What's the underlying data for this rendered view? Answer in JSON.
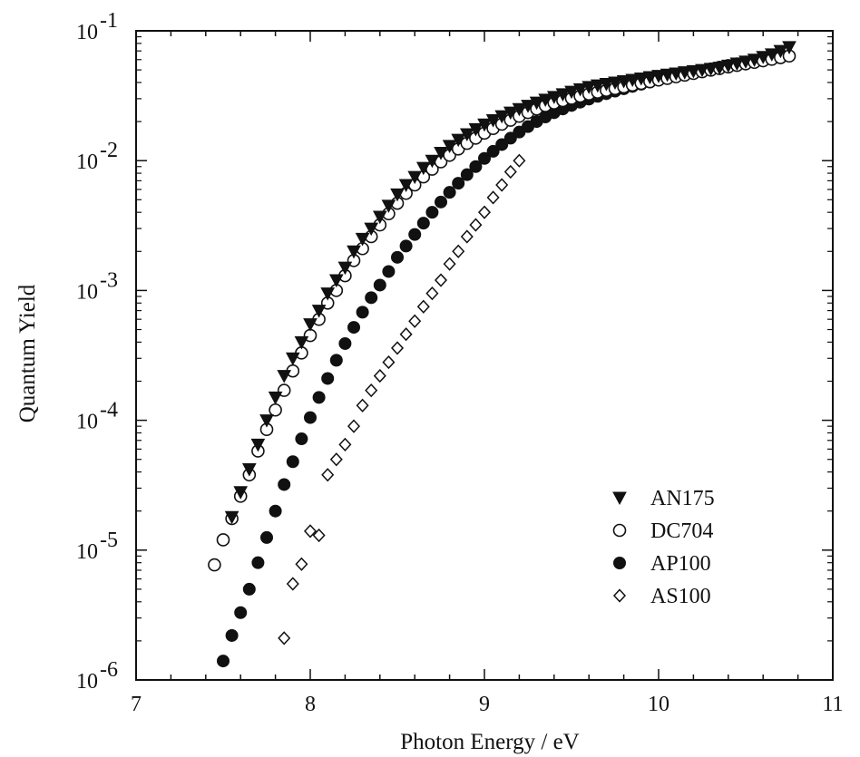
{
  "chart_data": {
    "type": "scatter",
    "xlabel": "Photon Energy / eV",
    "ylabel": "Quantum Yield",
    "xlim": [
      7,
      11
    ],
    "ylim": [
      1e-06,
      0.1
    ],
    "yscale": "log",
    "x_ticks": [
      "7",
      "8",
      "9",
      "10",
      "11"
    ],
    "y_ticks": [
      {
        "base": "10",
        "exp": "-6"
      },
      {
        "base": "10",
        "exp": "-5"
      },
      {
        "base": "10",
        "exp": "-4"
      },
      {
        "base": "10",
        "exp": "-3"
      },
      {
        "base": "10",
        "exp": "-2"
      },
      {
        "base": "10",
        "exp": "-1"
      }
    ],
    "grid": false,
    "legend_position": "bottom-right",
    "series": [
      {
        "name": "AN175",
        "marker": "filled-triangle-down",
        "x": [
          7.55,
          7.6,
          7.65,
          7.7,
          7.75,
          7.8,
          7.85,
          7.9,
          7.95,
          8.0,
          8.05,
          8.1,
          8.15,
          8.2,
          8.25,
          8.3,
          8.35,
          8.4,
          8.45,
          8.5,
          8.55,
          8.6,
          8.65,
          8.7,
          8.75,
          8.8,
          8.85,
          8.9,
          8.95,
          9.0,
          9.05,
          9.1,
          9.15,
          9.2,
          9.25,
          9.3,
          9.35,
          9.4,
          9.45,
          9.5,
          9.55,
          9.6,
          9.65,
          9.7,
          9.75,
          9.8,
          9.85,
          9.9,
          9.95,
          10.0,
          10.05,
          10.1,
          10.15,
          10.2,
          10.25,
          10.3,
          10.35,
          10.4,
          10.45,
          10.5,
          10.55,
          10.6,
          10.65,
          10.7,
          10.75
        ],
        "y": [
          1.8e-05,
          2.8e-05,
          4.2e-05,
          6.5e-05,
          0.0001,
          0.00015,
          0.00022,
          0.0003,
          0.0004,
          0.00055,
          0.0007,
          0.00095,
          0.0012,
          0.0015,
          0.002,
          0.0025,
          0.003,
          0.0037,
          0.0045,
          0.0055,
          0.0065,
          0.0075,
          0.0088,
          0.01,
          0.0115,
          0.013,
          0.0145,
          0.016,
          0.0175,
          0.019,
          0.0205,
          0.022,
          0.0235,
          0.025,
          0.0265,
          0.028,
          0.0295,
          0.031,
          0.0325,
          0.034,
          0.0355,
          0.037,
          0.038,
          0.039,
          0.04,
          0.041,
          0.042,
          0.043,
          0.044,
          0.045,
          0.046,
          0.047,
          0.048,
          0.049,
          0.05,
          0.051,
          0.052,
          0.054,
          0.056,
          0.058,
          0.06,
          0.063,
          0.066,
          0.07,
          0.075
        ]
      },
      {
        "name": "DC704",
        "marker": "open-circle",
        "x": [
          7.45,
          7.5,
          7.55,
          7.6,
          7.65,
          7.7,
          7.75,
          7.8,
          7.85,
          7.9,
          7.95,
          8.0,
          8.05,
          8.1,
          8.15,
          8.2,
          8.25,
          8.3,
          8.35,
          8.4,
          8.45,
          8.5,
          8.55,
          8.6,
          8.65,
          8.7,
          8.75,
          8.8,
          8.85,
          8.9,
          8.95,
          9.0,
          9.05,
          9.1,
          9.15,
          9.2,
          9.25,
          9.3,
          9.35,
          9.4,
          9.45,
          9.5,
          9.55,
          9.6,
          9.65,
          9.7,
          9.75,
          9.8,
          9.85,
          9.9,
          9.95,
          10.0,
          10.05,
          10.1,
          10.15,
          10.2,
          10.25,
          10.3,
          10.35,
          10.4,
          10.45,
          10.5,
          10.55,
          10.6,
          10.65,
          10.7,
          10.75
        ],
        "y": [
          7.7e-06,
          1.2e-05,
          1.75e-05,
          2.6e-05,
          3.8e-05,
          5.8e-05,
          8.5e-05,
          0.00012,
          0.00017,
          0.00024,
          0.00033,
          0.00045,
          0.0006,
          0.0008,
          0.001,
          0.0013,
          0.0017,
          0.0021,
          0.0026,
          0.0032,
          0.0039,
          0.0047,
          0.0056,
          0.0065,
          0.0075,
          0.0086,
          0.0098,
          0.011,
          0.0123,
          0.0136,
          0.0149,
          0.0163,
          0.0177,
          0.0191,
          0.0205,
          0.022,
          0.0235,
          0.025,
          0.0265,
          0.0278,
          0.029,
          0.0302,
          0.0314,
          0.0326,
          0.0337,
          0.0348,
          0.0359,
          0.037,
          0.0382,
          0.0394,
          0.0406,
          0.0418,
          0.043,
          0.0443,
          0.0456,
          0.047,
          0.0484,
          0.0498,
          0.0512,
          0.0527,
          0.0542,
          0.0557,
          0.0572,
          0.0588,
          0.0604,
          0.0622,
          0.064
        ]
      },
      {
        "name": "AP100",
        "marker": "filled-circle",
        "x": [
          7.5,
          7.55,
          7.6,
          7.65,
          7.7,
          7.75,
          7.8,
          7.85,
          7.9,
          7.95,
          8.0,
          8.05,
          8.1,
          8.15,
          8.2,
          8.25,
          8.3,
          8.35,
          8.4,
          8.45,
          8.5,
          8.55,
          8.6,
          8.65,
          8.7,
          8.75,
          8.8,
          8.85,
          8.9,
          8.95,
          9.0,
          9.05,
          9.1,
          9.15,
          9.2,
          9.25,
          9.3,
          9.35,
          9.4,
          9.45,
          9.5,
          9.55,
          9.6,
          9.65,
          9.7,
          9.75,
          9.8,
          9.85,
          9.9,
          9.95,
          10.0,
          10.05,
          10.1,
          10.15,
          10.2,
          10.25,
          10.3,
          10.35,
          10.4,
          10.45,
          10.5,
          10.55,
          10.6,
          10.65,
          10.7
        ],
        "y": [
          1.4e-06,
          2.2e-06,
          3.3e-06,
          5e-06,
          8e-06,
          1.25e-05,
          2e-05,
          3.2e-05,
          4.8e-05,
          7.2e-05,
          0.000105,
          0.00015,
          0.00021,
          0.00029,
          0.00039,
          0.00052,
          0.00068,
          0.00088,
          0.0011,
          0.0014,
          0.0018,
          0.0022,
          0.0027,
          0.0033,
          0.004,
          0.0048,
          0.0057,
          0.0067,
          0.0078,
          0.009,
          0.0104,
          0.0118,
          0.0133,
          0.0149,
          0.0166,
          0.0183,
          0.02,
          0.0217,
          0.0234,
          0.025,
          0.0266,
          0.0282,
          0.0298,
          0.0313,
          0.0328,
          0.0343,
          0.0358,
          0.0373,
          0.0388,
          0.0403,
          0.0418,
          0.0433,
          0.0448,
          0.0463,
          0.0478,
          0.0494,
          0.051,
          0.0526,
          0.0542,
          0.0558,
          0.0575,
          0.0592,
          0.061,
          0.063,
          0.066
        ]
      },
      {
        "name": "AS100",
        "marker": "open-diamond",
        "x": [
          7.85,
          7.9,
          7.95,
          8.0,
          8.05,
          8.1,
          8.15,
          8.2,
          8.25,
          8.3,
          8.35,
          8.4,
          8.45,
          8.5,
          8.55,
          8.6,
          8.65,
          8.7,
          8.75,
          8.8,
          8.85,
          8.9,
          8.95,
          9.0,
          9.05,
          9.1,
          9.15,
          9.2
        ],
        "y": [
          2.1e-06,
          5.5e-06,
          7.8e-06,
          1.4e-05,
          1.3e-05,
          3.8e-05,
          5e-05,
          6.5e-05,
          9e-05,
          0.00013,
          0.00017,
          0.00022,
          0.00028,
          0.00036,
          0.00046,
          0.00058,
          0.00075,
          0.00095,
          0.0012,
          0.0016,
          0.002,
          0.0026,
          0.0032,
          0.004,
          0.0052,
          0.0065,
          0.0082,
          0.01
        ]
      }
    ]
  }
}
